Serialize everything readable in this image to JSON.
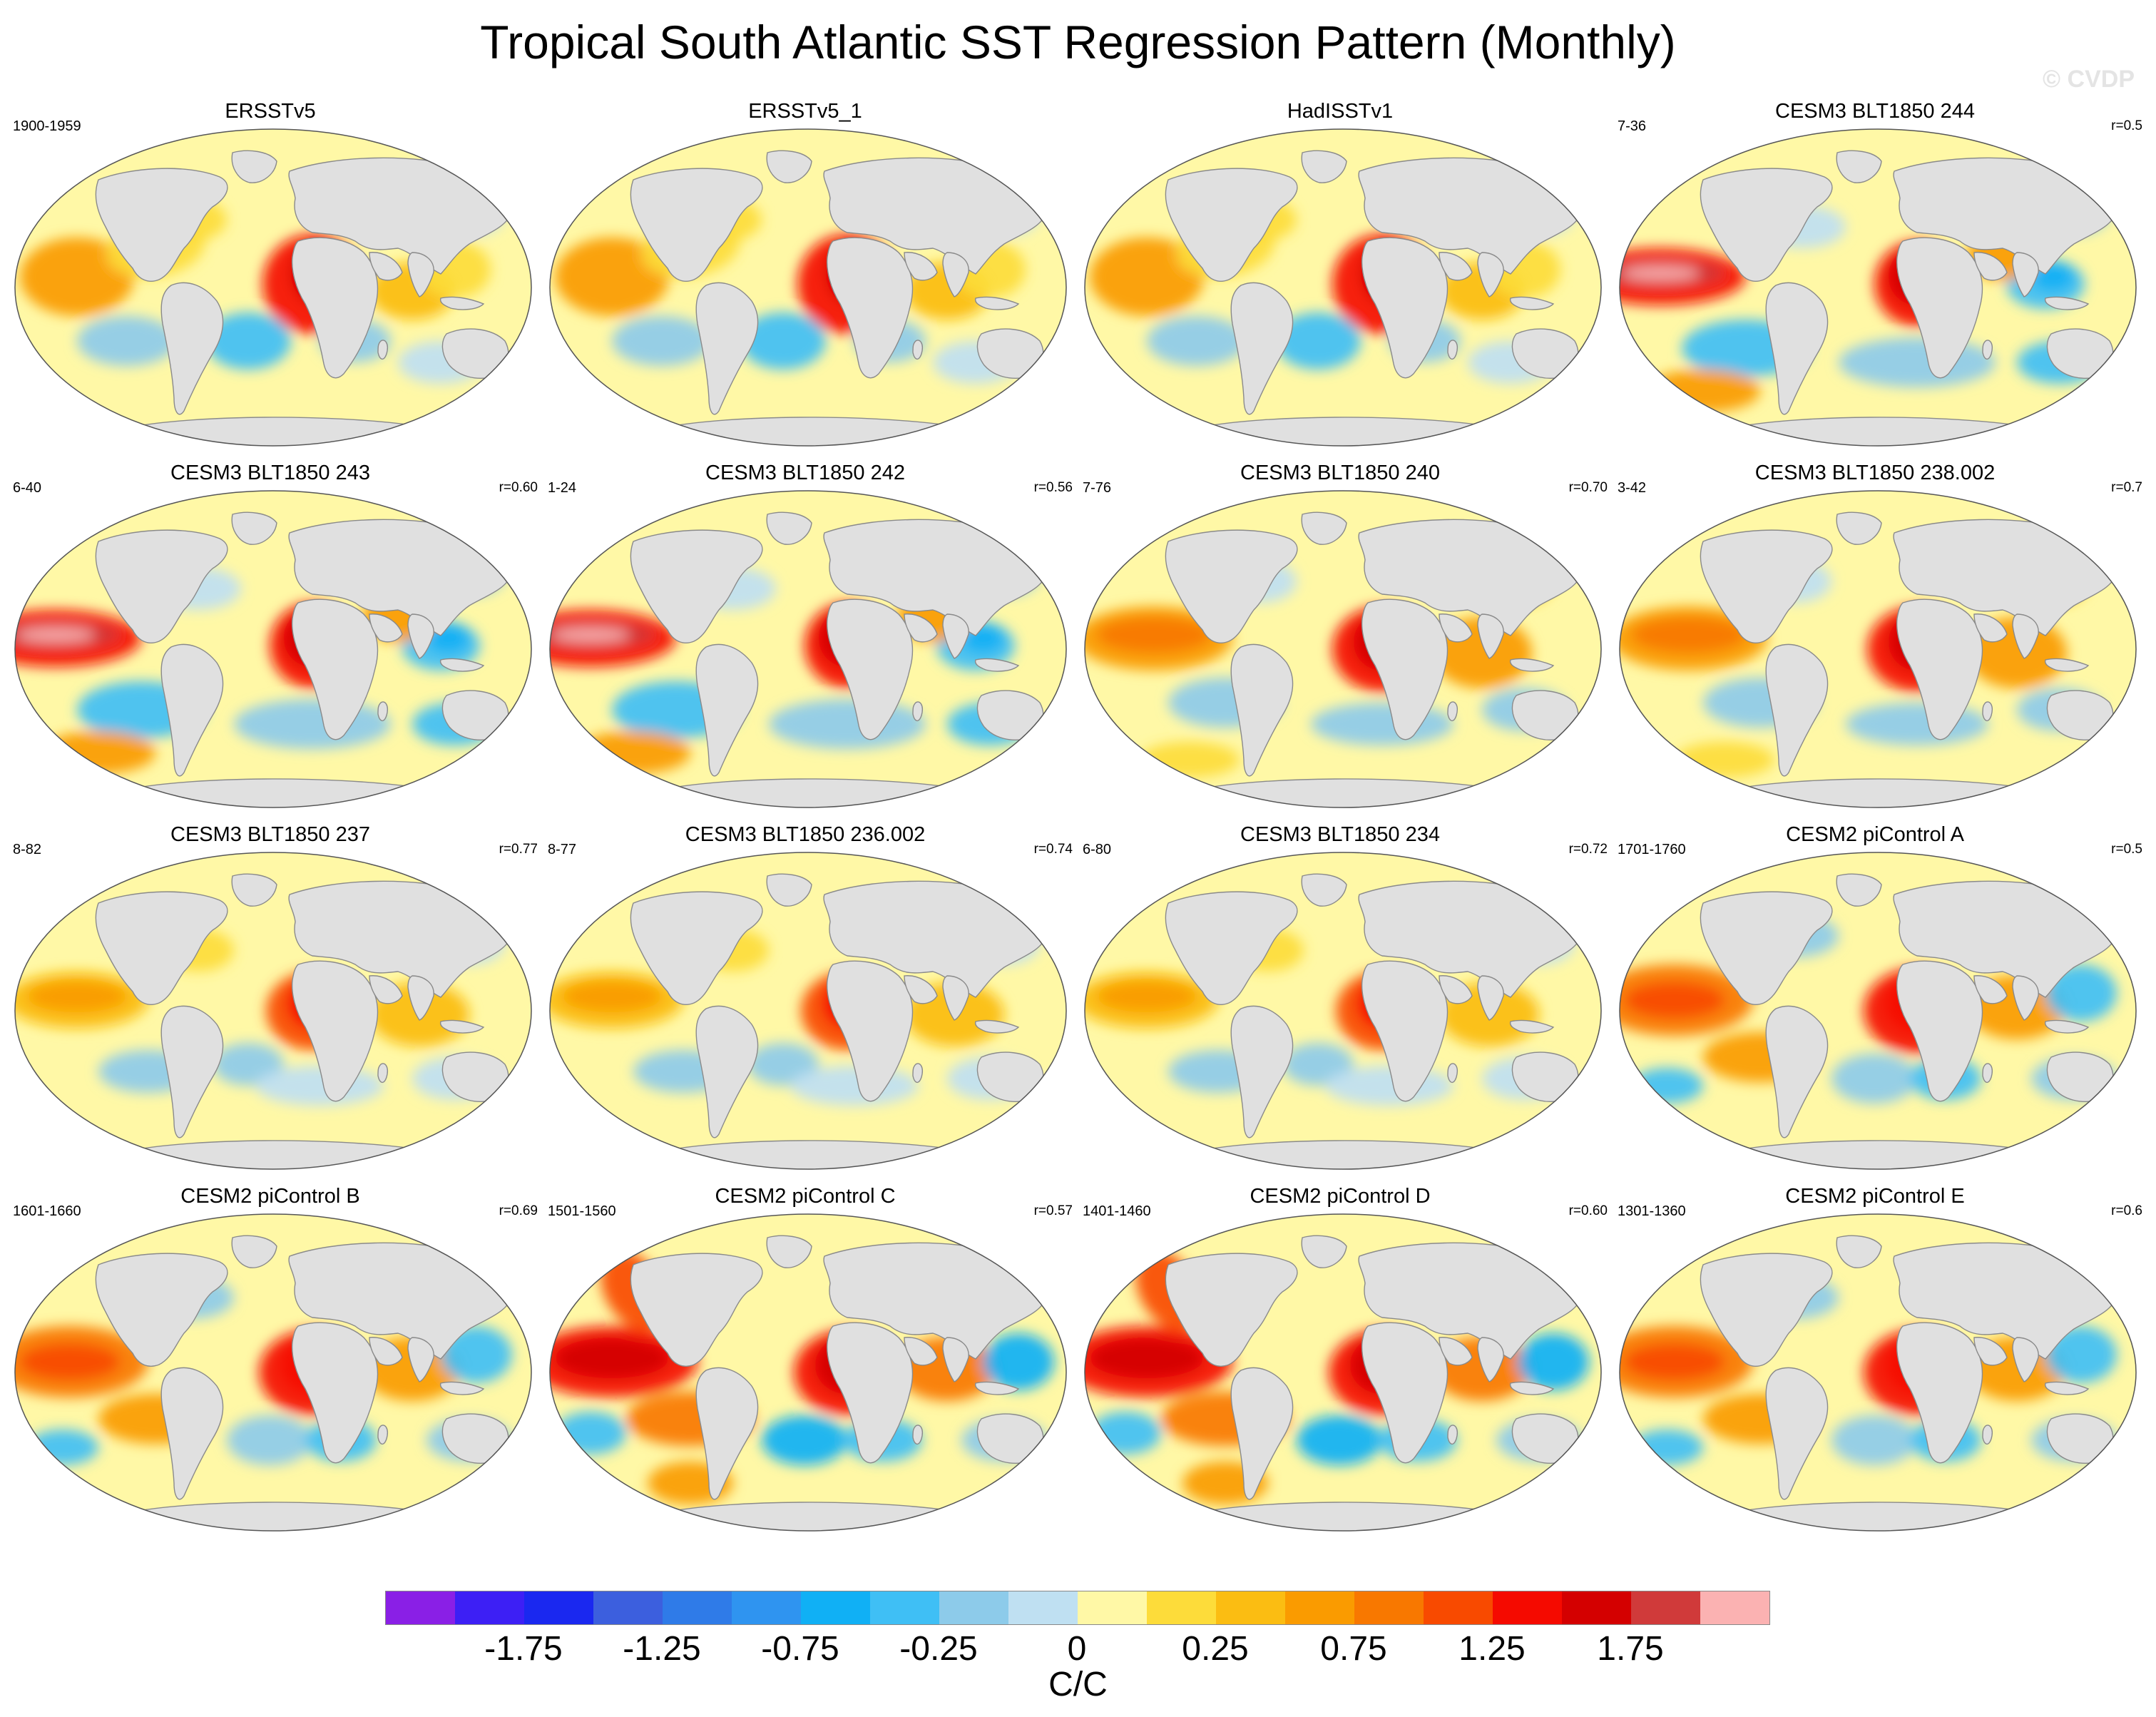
{
  "title": "Tropical South Atlantic SST Regression Pattern (Monthly)",
  "watermark": "© CVDP",
  "panels": [
    {
      "name": "ERSSTv5",
      "years": "1900-1959",
      "corr": "",
      "style": "obs"
    },
    {
      "name": "ERSSTv5_1",
      "years": "",
      "corr": "",
      "style": "obs"
    },
    {
      "name": "HadISSTv1",
      "years": "",
      "corr": "",
      "style": "obs"
    },
    {
      "name": "CESM3 BLT1850 244",
      "years": "7-36",
      "corr": "r=0.5",
      "style": "strong"
    },
    {
      "name": "CESM3 BLT1850 243",
      "years": "6-40",
      "corr": "r=0.60",
      "style": "strong"
    },
    {
      "name": "CESM3 BLT1850 242",
      "years": "1-24",
      "corr": "r=0.56",
      "style": "strong"
    },
    {
      "name": "CESM3 BLT1850 240",
      "years": "7-76",
      "corr": "r=0.70",
      "style": "warm"
    },
    {
      "name": "CESM3 BLT1850 238.002",
      "years": "3-42",
      "corr": "r=0.7",
      "style": "warm"
    },
    {
      "name": "CESM3 BLT1850 237",
      "years": "8-82",
      "corr": "r=0.77",
      "style": "mild"
    },
    {
      "name": "CESM3 BLT1850 236.002",
      "years": "8-77",
      "corr": "r=0.74",
      "style": "mild"
    },
    {
      "name": "CESM3 BLT1850 234",
      "years": "6-80",
      "corr": "r=0.72",
      "style": "mild"
    },
    {
      "name": "CESM2 piControl A",
      "years": "1701-1760",
      "corr": "r=0.5",
      "style": "cesm2"
    },
    {
      "name": "CESM2 piControl B",
      "years": "1601-1660",
      "corr": "r=0.69",
      "style": "cesm2"
    },
    {
      "name": "CESM2 piControl C",
      "years": "1501-1560",
      "corr": "r=0.57",
      "style": "cesm2strong"
    },
    {
      "name": "CESM2 piControl D",
      "years": "1401-1460",
      "corr": "r=0.60",
      "style": "cesm2strong"
    },
    {
      "name": "CESM2 piControl E",
      "years": "1301-1360",
      "corr": "r=0.6",
      "style": "cesm2"
    }
  ],
  "colorbar": {
    "colors": [
      "#8a1fe6",
      "#3d1ff5",
      "#1a28f0",
      "#3c5fde",
      "#2f7be8",
      "#2f94f0",
      "#10b0f5",
      "#3fbff5",
      "#8dcbea",
      "#bfe0f2",
      "#fff8a6",
      "#fddc3a",
      "#fbbd12",
      "#fa9b00",
      "#f87800",
      "#f84a00",
      "#f50a00",
      "#d40000",
      "#d03a3a",
      "#fbb2b2"
    ],
    "labels": [
      "-1.75",
      "-1.25",
      "-0.75",
      "-0.25",
      "0",
      "0.25",
      "0.75",
      "1.25",
      "1.75"
    ],
    "units": "C/C"
  }
}
